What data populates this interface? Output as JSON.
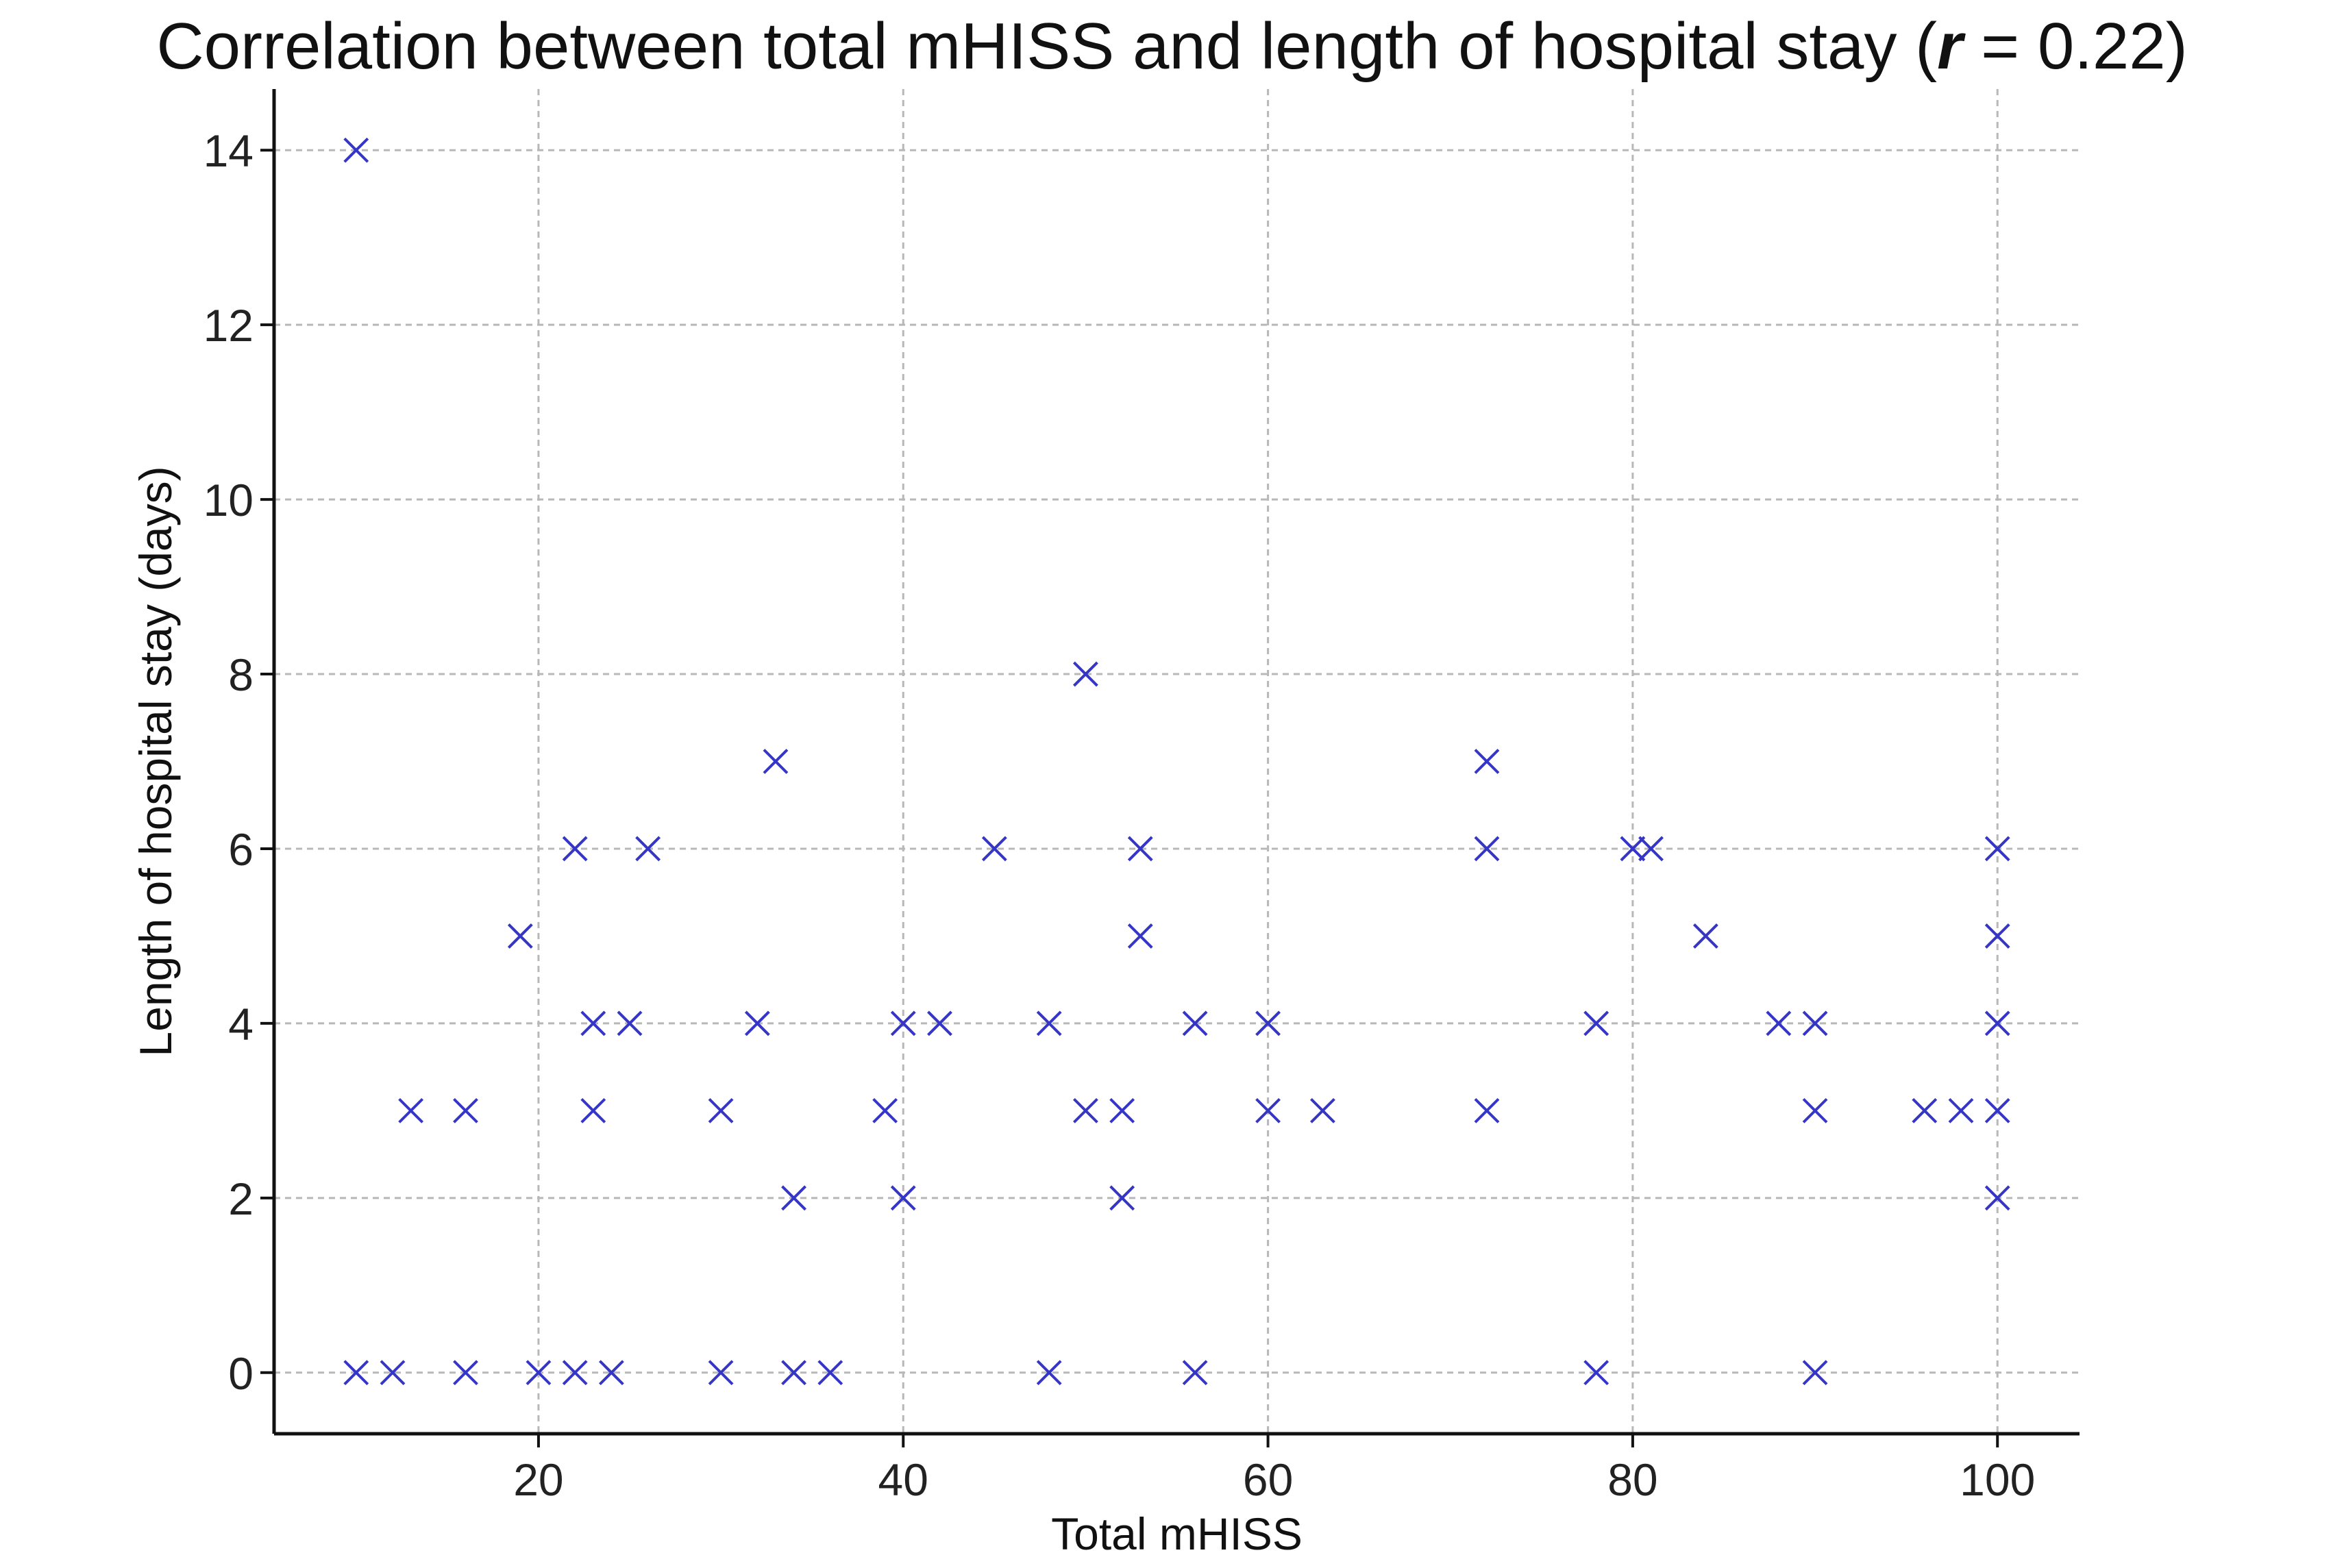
{
  "title_parts": {
    "pre": "Correlation between total mHISS and length of hospital stay (",
    "var": "r",
    "post": " = 0.22)"
  },
  "chart_data": {
    "type": "scatter",
    "title": "Correlation between total mHISS and length of hospital stay (r = 0.22)",
    "xlabel": "Total mHISS",
    "ylabel": "Length of hospital stay (days)",
    "xlim": [
      5.5,
      104.5
    ],
    "ylim": [
      -0.7,
      14.7
    ],
    "xticks": [
      20,
      40,
      60,
      80,
      100
    ],
    "yticks": [
      0,
      2,
      4,
      6,
      8,
      10,
      12,
      14
    ],
    "grid": true,
    "marker": "x",
    "marker_color": "#3535c6",
    "series": [
      {
        "points": [
          [
            10,
            14
          ],
          [
            10,
            0
          ],
          [
            12,
            0
          ],
          [
            13,
            3
          ],
          [
            16,
            3
          ],
          [
            16,
            0
          ],
          [
            19,
            5
          ],
          [
            20,
            0
          ],
          [
            22,
            6
          ],
          [
            22,
            0
          ],
          [
            23,
            4
          ],
          [
            23,
            3
          ],
          [
            24,
            0
          ],
          [
            25,
            4
          ],
          [
            26,
            6
          ],
          [
            30,
            3
          ],
          [
            30,
            0
          ],
          [
            32,
            4
          ],
          [
            33,
            7
          ],
          [
            34,
            2
          ],
          [
            34,
            0
          ],
          [
            36,
            0
          ],
          [
            39,
            3
          ],
          [
            40,
            4
          ],
          [
            40,
            2
          ],
          [
            42,
            4
          ],
          [
            45,
            6
          ],
          [
            48,
            4
          ],
          [
            48,
            0
          ],
          [
            50,
            8
          ],
          [
            50,
            3
          ],
          [
            52,
            3
          ],
          [
            52,
            2
          ],
          [
            53,
            6
          ],
          [
            53,
            5
          ],
          [
            56,
            4
          ],
          [
            56,
            0
          ],
          [
            60,
            4
          ],
          [
            60,
            3
          ],
          [
            63,
            3
          ],
          [
            72,
            7
          ],
          [
            72,
            6
          ],
          [
            72,
            3
          ],
          [
            78,
            4
          ],
          [
            78,
            0
          ],
          [
            80,
            6
          ],
          [
            81,
            6
          ],
          [
            84,
            5
          ],
          [
            88,
            4
          ],
          [
            90,
            4
          ],
          [
            90,
            3
          ],
          [
            90,
            0
          ],
          [
            96,
            3
          ],
          [
            98,
            3
          ],
          [
            100,
            6
          ],
          [
            100,
            5
          ],
          [
            100,
            4
          ],
          [
            100,
            3
          ],
          [
            100,
            2
          ]
        ]
      }
    ]
  }
}
